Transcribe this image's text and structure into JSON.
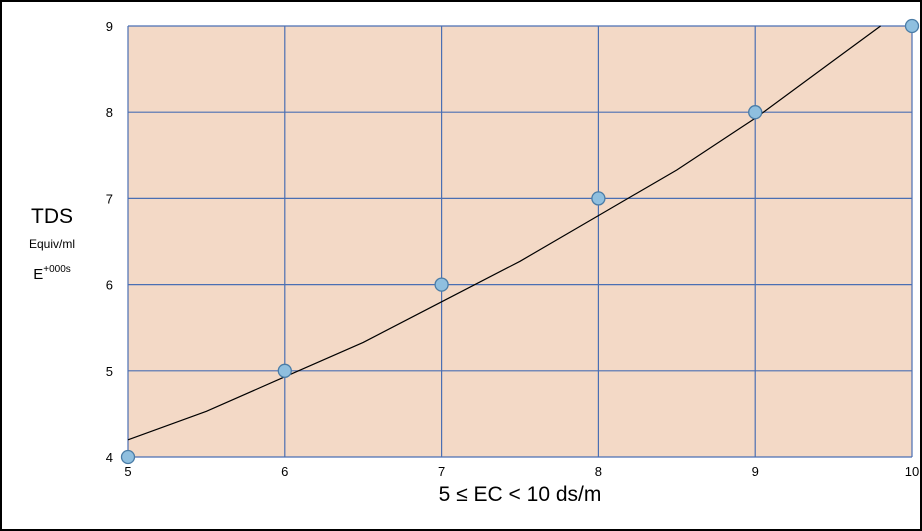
{
  "chart_data": {
    "type": "scatter",
    "title": "",
    "xlabel": "5 ≤ EC < 10 ds/m",
    "ylabel": {
      "main": "TDS",
      "units": "Equiv/ml",
      "exp_base": "E",
      "exp_power": "+000s"
    },
    "xlim": [
      5,
      10
    ],
    "ylim": [
      4,
      9
    ],
    "x_ticks": [
      "5",
      "6",
      "7",
      "8",
      "9",
      "10"
    ],
    "y_ticks": [
      "4",
      "5",
      "6",
      "7",
      "8",
      "9"
    ],
    "grid": true,
    "legend": "none",
    "series": [
      {
        "x": [
          5,
          6,
          7,
          8,
          9,
          10
        ],
        "y": [
          4,
          5,
          6,
          7,
          8,
          9
        ]
      }
    ],
    "trendline": {
      "x": [
        5,
        5.5,
        6,
        6.5,
        7,
        7.5,
        8,
        8.5,
        9,
        9.5,
        9.8
      ],
      "y": [
        4.2,
        4.53,
        4.93,
        5.33,
        5.8,
        6.27,
        6.8,
        7.33,
        7.93,
        8.6,
        9.0
      ]
    },
    "colors": {
      "plot_area": "#f3d9c6",
      "grid": "#4a6fb3",
      "marker_fill": "#8fbfdf",
      "marker_stroke": "#4a7ca6",
      "trendline": "#000000"
    }
  }
}
